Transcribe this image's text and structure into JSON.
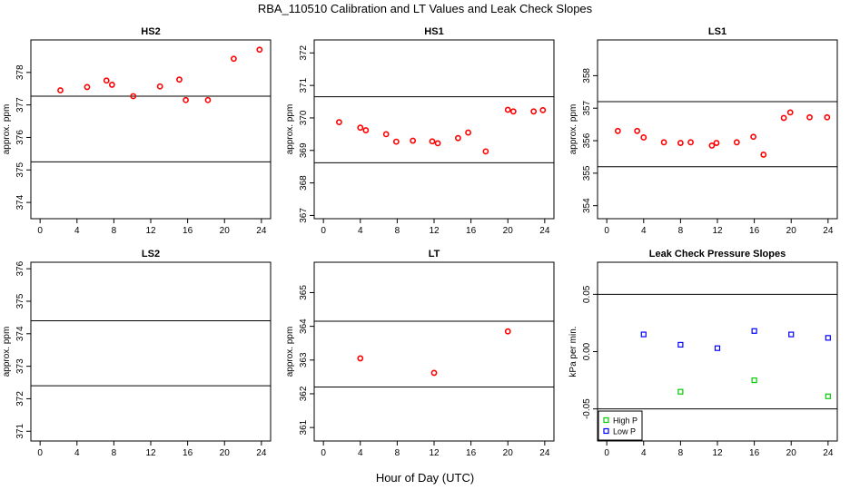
{
  "title": "RBA_110510  Calibration and LT Values and Leak Check Slopes",
  "xlabel": "Hour of Day (UTC)",
  "chart_data": [
    {
      "type": "scatter",
      "title": "HS2",
      "ylabel": "approx. ppm",
      "xlim": [
        -1,
        25
      ],
      "ylim": [
        373.5,
        379.0
      ],
      "xticks": [
        "0",
        "4",
        "8",
        "12",
        "16",
        "20",
        "24"
      ],
      "yticks": [
        "374",
        "375",
        "376",
        "377",
        "378"
      ],
      "hlines": [
        377.27,
        375.25
      ],
      "series": [
        {
          "color": "#ff0000",
          "marker": "circle",
          "points": [
            [
              2.2,
              377.45
            ],
            [
              5.1,
              377.55
            ],
            [
              7.2,
              377.75
            ],
            [
              7.8,
              377.62
            ],
            [
              10.1,
              377.27
            ],
            [
              13.0,
              377.57
            ],
            [
              15.1,
              377.78
            ],
            [
              15.8,
              377.15
            ],
            [
              18.2,
              377.15
            ],
            [
              21.0,
              378.42
            ],
            [
              23.8,
              378.7
            ]
          ]
        }
      ]
    },
    {
      "type": "scatter",
      "title": "HS1",
      "ylabel": "approx. ppm",
      "xlim": [
        -1,
        25
      ],
      "ylim": [
        366.9,
        372.4
      ],
      "xticks": [
        "0",
        "4",
        "8",
        "12",
        "16",
        "20",
        "24"
      ],
      "yticks": [
        "367",
        "368",
        "369",
        "370",
        "371",
        "372"
      ],
      "hlines": [
        370.65,
        368.62
      ],
      "series": [
        {
          "color": "#ff0000",
          "marker": "circle",
          "points": [
            [
              1.7,
              369.87
            ],
            [
              4.0,
              369.7
            ],
            [
              4.6,
              369.62
            ],
            [
              6.8,
              369.5
            ],
            [
              7.9,
              369.27
            ],
            [
              9.7,
              369.3
            ],
            [
              11.8,
              369.28
            ],
            [
              12.4,
              369.22
            ],
            [
              14.6,
              369.38
            ],
            [
              15.7,
              369.55
            ],
            [
              17.6,
              368.97
            ],
            [
              20.0,
              370.25
            ],
            [
              20.6,
              370.2
            ],
            [
              22.8,
              370.2
            ],
            [
              23.8,
              370.24
            ]
          ]
        }
      ]
    },
    {
      "type": "scatter",
      "title": "LS1",
      "ylabel": "approx. ppm",
      "xlim": [
        -1,
        25
      ],
      "ylim": [
        353.6,
        359.1
      ],
      "xticks": [
        "0",
        "4",
        "8",
        "12",
        "16",
        "20",
        "24"
      ],
      "yticks": [
        "354",
        "355",
        "356",
        "357",
        "358"
      ],
      "hlines": [
        357.2,
        355.2
      ],
      "series": [
        {
          "color": "#ff0000",
          "marker": "circle",
          "points": [
            [
              1.2,
              356.3
            ],
            [
              3.3,
              356.3
            ],
            [
              4.0,
              356.1
            ],
            [
              6.2,
              355.95
            ],
            [
              8.0,
              355.93
            ],
            [
              9.1,
              355.95
            ],
            [
              11.4,
              355.85
            ],
            [
              11.9,
              355.93
            ],
            [
              14.1,
              355.95
            ],
            [
              15.9,
              356.12
            ],
            [
              17.0,
              355.57
            ],
            [
              19.2,
              356.7
            ],
            [
              19.9,
              356.87
            ],
            [
              22.0,
              356.72
            ],
            [
              23.9,
              356.72
            ]
          ]
        }
      ]
    },
    {
      "type": "scatter",
      "title": "LS2",
      "ylabel": "approx. ppm",
      "xlim": [
        -1,
        25
      ],
      "ylim": [
        370.7,
        376.2
      ],
      "xticks": [
        "0",
        "4",
        "8",
        "12",
        "16",
        "20",
        "24"
      ],
      "yticks": [
        "371",
        "372",
        "373",
        "374",
        "375",
        "376"
      ],
      "hlines": [
        374.4,
        372.4
      ],
      "series": []
    },
    {
      "type": "scatter",
      "title": "LT",
      "ylabel": "approx. ppm",
      "xlim": [
        -1,
        25
      ],
      "ylim": [
        360.6,
        365.9
      ],
      "xticks": [
        "0",
        "4",
        "8",
        "12",
        "16",
        "20",
        "24"
      ],
      "yticks": [
        "361",
        "362",
        "363",
        "364",
        "365"
      ],
      "hlines": [
        364.15,
        362.2
      ],
      "series": [
        {
          "color": "#ff0000",
          "marker": "circle",
          "points": [
            [
              4.0,
              363.05
            ],
            [
              12.0,
              362.62
            ],
            [
              20.0,
              363.85
            ]
          ]
        }
      ]
    },
    {
      "type": "scatter",
      "title": "Leak Check Pressure Slopes",
      "ylabel": "kPa per min.",
      "xlim": [
        -1,
        25
      ],
      "ylim": [
        -0.078,
        0.078
      ],
      "xticks": [
        "0",
        "4",
        "8",
        "12",
        "16",
        "20",
        "24"
      ],
      "yticks": [
        "-0.05",
        "0.00",
        "0.05"
      ],
      "hlines": [
        0.05,
        -0.05
      ],
      "legend": [
        {
          "label": "High P",
          "color": "#00cc00"
        },
        {
          "label": "Low P",
          "color": "#0000ff"
        }
      ],
      "legend_position": "bottom-left",
      "series": [
        {
          "name": "High P",
          "color": "#00cc00",
          "marker": "square",
          "points": [
            [
              8.0,
              -0.035
            ],
            [
              16.0,
              -0.025
            ],
            [
              24.0,
              -0.039
            ]
          ]
        },
        {
          "name": "Low P",
          "color": "#0000ff",
          "marker": "square",
          "points": [
            [
              4.0,
              0.015
            ],
            [
              8.0,
              0.006
            ],
            [
              12.0,
              0.003
            ],
            [
              16.0,
              0.018
            ],
            [
              20.0,
              0.015
            ],
            [
              24.0,
              0.012
            ]
          ]
        }
      ]
    }
  ]
}
